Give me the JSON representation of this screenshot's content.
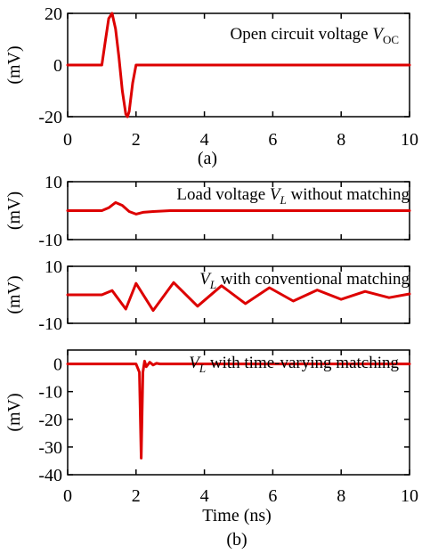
{
  "colors": {
    "curve": "#dd0000",
    "axis": "#000000",
    "background": "#ffffff"
  },
  "panel_labels": {
    "a": "(a)",
    "b": "(b)"
  },
  "x_axis_label": "Time (ns)",
  "chart_data": [
    {
      "id": "voc",
      "type": "line",
      "annotation": {
        "text": "Open circuit voltage ",
        "symbol": "V",
        "sub": "OC"
      },
      "ylabel": "(mV)",
      "xlim": [
        0,
        10
      ],
      "ylim": [
        -20,
        20
      ],
      "xticks": [
        0,
        2,
        4,
        6,
        8,
        10
      ],
      "yticks": [
        20,
        0,
        -20
      ],
      "show_xtick_labels": true,
      "series": [
        {
          "x": [
            0,
            1.0,
            1.1,
            1.2,
            1.3,
            1.4,
            1.5,
            1.6,
            1.7,
            1.75,
            1.8,
            1.9,
            2.0,
            10
          ],
          "y": [
            0,
            0,
            9,
            18,
            20,
            14,
            3,
            -10,
            -19,
            -20,
            -18,
            -7,
            0,
            0
          ]
        }
      ]
    },
    {
      "id": "vl_none",
      "type": "line",
      "annotation": {
        "prefix": "Load voltage ",
        "symbol": "V",
        "sub": "L",
        "text": " without matching"
      },
      "ylabel": "(mV)",
      "xlim": [
        0,
        10
      ],
      "ylim": [
        -10,
        10
      ],
      "xticks": [
        0,
        2,
        4,
        6,
        8,
        10
      ],
      "yticks": [
        10,
        -10
      ],
      "show_xtick_labels": false,
      "series": [
        {
          "x": [
            0,
            1.0,
            1.2,
            1.4,
            1.6,
            1.8,
            2.0,
            2.2,
            2.5,
            3.0,
            10
          ],
          "y": [
            0,
            0,
            1.0,
            2.8,
            1.8,
            -0.3,
            -1.2,
            -0.6,
            -0.3,
            0,
            0
          ]
        }
      ]
    },
    {
      "id": "vl_conv",
      "type": "line",
      "annotation": {
        "symbol": "V",
        "sub": "L",
        "text": " with conventional matching"
      },
      "ylabel": "(mV)",
      "xlim": [
        0,
        10
      ],
      "ylim": [
        -10,
        10
      ],
      "xticks": [
        0,
        2,
        4,
        6,
        8,
        10
      ],
      "yticks": [
        10,
        -10
      ],
      "show_xtick_labels": false,
      "series": [
        {
          "x": [
            0,
            0.9,
            1.0,
            1.3,
            1.7,
            2.0,
            2.5,
            3.1,
            3.8,
            4.5,
            5.2,
            5.9,
            6.6,
            7.3,
            8.0,
            8.7,
            9.4,
            10.0
          ],
          "y": [
            0,
            0,
            0,
            1.5,
            -5,
            4,
            -5.5,
            4.3,
            -4,
            3.2,
            -3.1,
            2.5,
            -2.2,
            1.7,
            -1.6,
            1.2,
            -1.0,
            0.3
          ]
        }
      ]
    },
    {
      "id": "vl_tv",
      "type": "line",
      "annotation": {
        "symbol": "V",
        "sub": "L",
        "text": " with time-varying matching"
      },
      "ylabel": "(mV)",
      "xlim": [
        0,
        10
      ],
      "ylim": [
        -40,
        5
      ],
      "xticks": [
        0,
        2,
        4,
        6,
        8,
        10
      ],
      "yticks": [
        0,
        -10,
        -20,
        -30,
        -40
      ],
      "show_xtick_labels": true,
      "series": [
        {
          "x": [
            0,
            2.0,
            2.1,
            2.15,
            2.2,
            2.25,
            2.3,
            2.4,
            2.5,
            2.6,
            2.7,
            10
          ],
          "y": [
            0,
            0,
            -3,
            -34,
            -3,
            1,
            -1,
            0.6,
            -0.4,
            0.2,
            0,
            0
          ]
        }
      ]
    }
  ]
}
